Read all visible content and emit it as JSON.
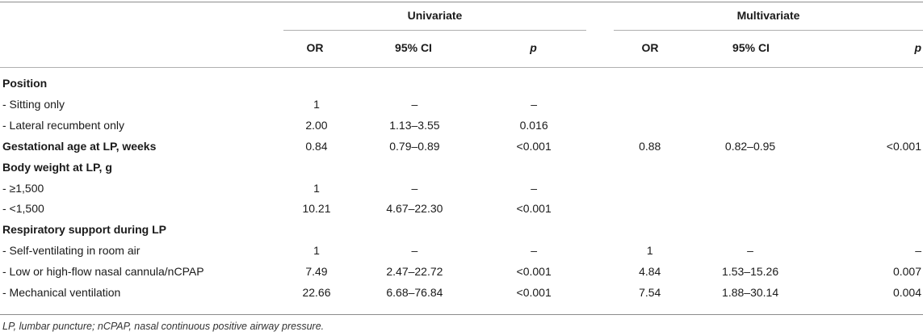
{
  "header": {
    "univariate": "Univariate",
    "multivariate": "Multivariate",
    "or": "OR",
    "ci": "95% CI",
    "p": "p"
  },
  "rows": [
    {
      "label": "Position",
      "bold": true,
      "u_or": "",
      "u_ci": "",
      "u_p": "",
      "m_or": "",
      "m_ci": "",
      "m_p": ""
    },
    {
      "label": "- Sitting only",
      "bold": false,
      "u_or": "1",
      "u_ci": "–",
      "u_p": "–",
      "m_or": "",
      "m_ci": "",
      "m_p": ""
    },
    {
      "label": "- Lateral recumbent only",
      "bold": false,
      "u_or": "2.00",
      "u_ci": "1.13–3.55",
      "u_p": "0.016",
      "m_or": "",
      "m_ci": "",
      "m_p": ""
    },
    {
      "label": "Gestational age at LP, weeks",
      "bold": true,
      "u_or": "0.84",
      "u_ci": "0.79–0.89",
      "u_p": "<0.001",
      "m_or": "0.88",
      "m_ci": "0.82–0.95",
      "m_p": "<0.001"
    },
    {
      "label": "Body weight at LP, g",
      "bold": true,
      "u_or": "",
      "u_ci": "",
      "u_p": "",
      "m_or": "",
      "m_ci": "",
      "m_p": ""
    },
    {
      "label": "- ≥1,500",
      "bold": false,
      "u_or": "1",
      "u_ci": "–",
      "u_p": "–",
      "m_or": "",
      "m_ci": "",
      "m_p": ""
    },
    {
      "label": "- <1,500",
      "bold": false,
      "u_or": "10.21",
      "u_ci": "4.67–22.30",
      "u_p": "<0.001",
      "m_or": "",
      "m_ci": "",
      "m_p": ""
    },
    {
      "label": "Respiratory support during LP",
      "bold": true,
      "u_or": "",
      "u_ci": "",
      "u_p": "",
      "m_or": "",
      "m_ci": "",
      "m_p": ""
    },
    {
      "label": "- Self-ventilating in room air",
      "bold": false,
      "u_or": "1",
      "u_ci": "–",
      "u_p": "–",
      "m_or": "1",
      "m_ci": "–",
      "m_p": "–"
    },
    {
      "label": "- Low or high-flow nasal cannula/nCPAP",
      "bold": false,
      "u_or": "7.49",
      "u_ci": "2.47–22.72",
      "u_p": "<0.001",
      "m_or": "4.84",
      "m_ci": "1.53–15.26",
      "m_p": "0.007"
    },
    {
      "label": "- Mechanical ventilation",
      "bold": false,
      "u_or": "22.66",
      "u_ci": "6.68–76.84",
      "u_p": "<0.001",
      "m_or": "7.54",
      "m_ci": "1.88–30.14",
      "m_p": "0.004"
    }
  ],
  "footnote": "LP, lumbar puncture; nCPAP, nasal continuous positive airway pressure."
}
